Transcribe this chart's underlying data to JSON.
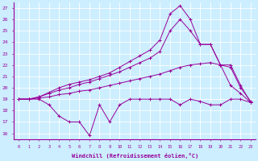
{
  "xlabel": "Windchill (Refroidissement éolien,°C)",
  "bg_color": "#cceeff",
  "grid_color": "#aaddee",
  "line_color": "#990099",
  "xlim": [
    -0.5,
    23.5
  ],
  "ylim": [
    15.5,
    27.5
  ],
  "xticks": [
    0,
    1,
    2,
    3,
    4,
    5,
    6,
    7,
    8,
    9,
    10,
    11,
    12,
    13,
    14,
    15,
    16,
    17,
    18,
    19,
    20,
    21,
    22,
    23
  ],
  "yticks": [
    16,
    17,
    18,
    19,
    20,
    21,
    22,
    23,
    24,
    25,
    26,
    27
  ],
  "series": {
    "line1": [
      19.0,
      19.0,
      19.0,
      18.5,
      17.5,
      17.0,
      17.0,
      15.8,
      18.5,
      17.0,
      18.5,
      19.0,
      19.0,
      19.0,
      19.0,
      19.0,
      18.5,
      19.0,
      18.8,
      18.5,
      18.5,
      19.0,
      19.0,
      18.7
    ],
    "line2": [
      19.0,
      19.0,
      19.1,
      19.2,
      19.4,
      19.5,
      19.7,
      19.8,
      20.0,
      20.2,
      20.4,
      20.6,
      20.8,
      21.0,
      21.2,
      21.5,
      21.8,
      22.0,
      22.1,
      22.2,
      22.0,
      21.8,
      20.0,
      18.8
    ],
    "line3": [
      19.0,
      19.0,
      19.2,
      19.5,
      19.8,
      20.0,
      20.3,
      20.5,
      20.8,
      21.1,
      21.4,
      21.8,
      22.2,
      22.6,
      23.2,
      25.0,
      26.0,
      25.0,
      23.8,
      23.8,
      22.0,
      20.2,
      19.5,
      18.7
    ],
    "line4": [
      19.0,
      19.0,
      19.2,
      19.6,
      20.0,
      20.3,
      20.5,
      20.7,
      21.0,
      21.3,
      21.8,
      22.3,
      22.8,
      23.3,
      24.2,
      26.5,
      27.2,
      26.0,
      23.8,
      23.8,
      22.0,
      22.0,
      20.2,
      18.7
    ]
  }
}
